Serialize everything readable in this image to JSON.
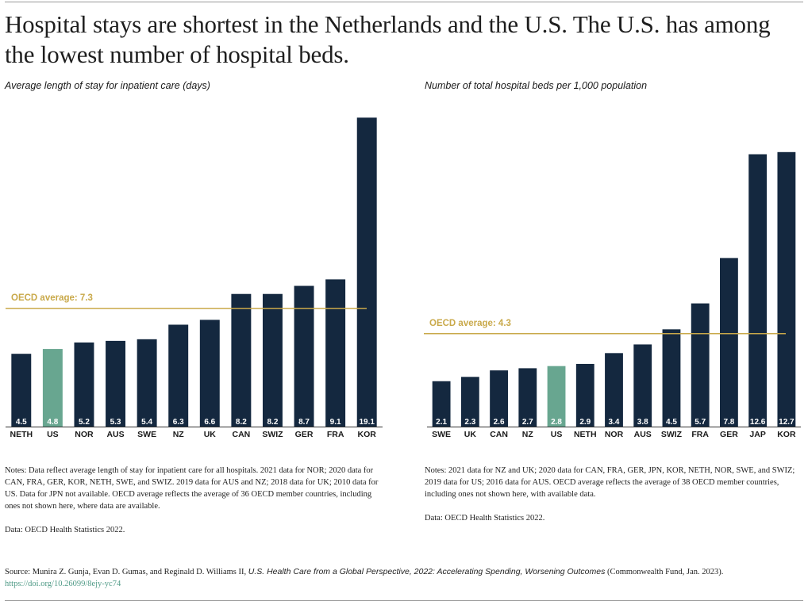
{
  "headline": "Hospital stays are shortest in the Netherlands and the U.S. The U.S. has among the lowest number of hospital beds.",
  "colors": {
    "bar": "#14283f",
    "highlight": "#68a690",
    "average": "#c9a94a",
    "label": "#ffffff"
  },
  "chart_data": [
    {
      "type": "bar",
      "title": "Average length of stay for inpatient care (days)",
      "categories": [
        "NETH",
        "US",
        "NOR",
        "AUS",
        "SWE",
        "NZ",
        "UK",
        "CAN",
        "SWIZ",
        "GER",
        "FRA",
        "KOR"
      ],
      "values": [
        4.5,
        4.8,
        5.2,
        5.3,
        5.4,
        6.3,
        6.6,
        8.2,
        8.2,
        8.7,
        9.1,
        19.1
      ],
      "value_labels": [
        "4.5",
        "4.8",
        "5.2",
        "5.3",
        "5.4",
        "6.3",
        "6.6",
        "8.2",
        "8.2",
        "8.7",
        "9.1",
        "19.1"
      ],
      "highlight": "US",
      "reference_line": {
        "label": "OECD average: 7.3",
        "value": 7.3
      },
      "ylim": [
        0,
        20
      ],
      "grid": false,
      "xlabel": "",
      "ylabel": ""
    },
    {
      "type": "bar",
      "title": "Number of total hospital beds per 1,000 population",
      "categories": [
        "SWE",
        "UK",
        "CAN",
        "NZ",
        "US",
        "NETH",
        "NOR",
        "AUS",
        "SWIZ",
        "FRA",
        "GER",
        "JAP",
        "KOR"
      ],
      "values": [
        2.1,
        2.3,
        2.6,
        2.7,
        2.8,
        2.9,
        3.4,
        3.8,
        4.5,
        5.7,
        7.8,
        12.6,
        12.7
      ],
      "value_labels": [
        "2.1",
        "2.3",
        "2.6",
        "2.7",
        "2.8",
        "2.9",
        "3.4",
        "3.8",
        "4.5",
        "5.7",
        "7.8",
        "12.6",
        "12.7"
      ],
      "highlight": "US",
      "reference_line": {
        "label": "OECD average: 4.3",
        "value": 4.3
      },
      "ylim": [
        0,
        13.5
      ],
      "grid": false,
      "xlabel": "",
      "ylabel": ""
    }
  ],
  "notes_left": {
    "text": "Notes: Data reflect average length of stay for inpatient care for all hospitals. 2021 data for NOR; 2020 data for CAN, FRA, GER, KOR, NETH, SWE, and SWIZ. 2019 data for AUS and NZ; 2018 data for UK; 2010 data for US. Data for JPN not available. OECD average reflects the average of 36 OECD member countries, including ones not shown here, where data are available.",
    "data": "Data: OECD Health Statistics 2022."
  },
  "notes_right": {
    "text": "Notes: 2021 data for NZ and UK; 2020 data for CAN, FRA, GER, JPN, KOR, NETH, NOR, SWE, and SWIZ; 2019 data for US; 2016 data for AUS. OECD average reflects the average of 38 OECD member countries, including ones not shown here, with available data.",
    "data": "Data: OECD Health Statistics 2022."
  },
  "source": {
    "prefix": "Source: Munira Z. Gunja, Evan D. Gumas, and Reginald D. Williams II, ",
    "title": "U.S. Health Care from a Global Perspective, 2022: Accelerating Spending, Worsening Outcomes",
    "suffix": " (Commonwealth Fund, Jan. 2023). ",
    "doi": "https://doi.org/10.26099/8ejy-yc74"
  }
}
